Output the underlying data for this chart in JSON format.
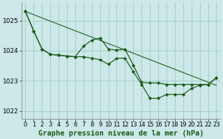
{
  "background_color": "#cce8e8",
  "grid_color": "#a8cccc",
  "line_color": "#1a5c1a",
  "marker_color": "#1a5c1a",
  "xlabel": "Graphe pression niveau de la mer (hPa)",
  "xlabel_fontsize": 7.5,
  "xtick_fontsize": 6,
  "ytick_fontsize": 6.5,
  "xlim": [
    -0.5,
    23.5
  ],
  "ylim": [
    1021.75,
    1025.6
  ],
  "yticks": [
    1022,
    1023,
    1024,
    1025
  ],
  "xticks": [
    0,
    1,
    2,
    3,
    4,
    5,
    6,
    7,
    8,
    9,
    10,
    11,
    12,
    13,
    14,
    15,
    16,
    17,
    18,
    19,
    20,
    21,
    22,
    23
  ],
  "trend_x": [
    0,
    23
  ],
  "trend_y": [
    1025.3,
    1022.85
  ],
  "series1_x": [
    0,
    1,
    2,
    3,
    4,
    5,
    6,
    7,
    8,
    9,
    10,
    11,
    12,
    13,
    14,
    15,
    16,
    17,
    18,
    19,
    20,
    21,
    22,
    23
  ],
  "series1_y": [
    1025.3,
    1024.65,
    1024.05,
    1023.88,
    1023.85,
    1023.82,
    1023.8,
    1024.15,
    1024.35,
    1024.42,
    1024.05,
    1024.02,
    1024.05,
    1023.52,
    1022.95,
    1022.93,
    1022.93,
    1022.88,
    1022.88,
    1022.88,
    1022.88,
    1022.88,
    1022.88,
    1023.1
  ],
  "series2_x": [
    0,
    1,
    2,
    3,
    4,
    5,
    6,
    7,
    8,
    9,
    10,
    11,
    12,
    13,
    14,
    15,
    16,
    17,
    18,
    19,
    20,
    21,
    22,
    23
  ],
  "series2_y": [
    1025.3,
    1024.65,
    1024.05,
    1023.88,
    1023.85,
    1023.82,
    1023.8,
    1023.8,
    1023.75,
    1023.7,
    1023.55,
    1023.75,
    1023.75,
    1023.3,
    1022.88,
    1022.42,
    1022.42,
    1022.55,
    1022.55,
    1022.55,
    1022.75,
    1022.85,
    1022.88,
    1023.1
  ]
}
